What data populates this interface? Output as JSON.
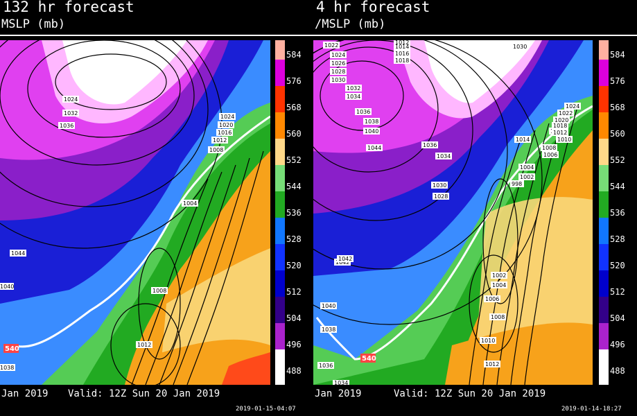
{
  "panels": [
    {
      "title": "132 hr forecast",
      "subtitle": "MSLP (mb)",
      "valid_init": "Jan 2019",
      "valid_label": "Valid: 12Z Sun 20 Jan 2019",
      "timestamp": "2019-01-15-04:07",
      "pressure_labels": [
        "1024",
        "1032",
        "1036",
        "1024",
        "1020",
        "1016",
        "1012",
        "1008",
        "1004",
        "1044",
        "1040",
        "1008",
        "1012",
        "1038"
      ],
      "thickness_label": "540"
    },
    {
      "title": "4 hr forecast",
      "subtitle": "/MSLP (mb)",
      "valid_init": "Jan 2019",
      "valid_label": "Valid: 12Z Sun 20 Jan 2019",
      "timestamp": "2019-01-14-18:27",
      "pressure_labels": [
        "1022",
        "1024",
        "1026",
        "1028",
        "1030",
        "1032",
        "1034",
        "1036",
        "1038",
        "1040",
        "1042",
        "1044",
        "1036",
        "1034",
        "1030",
        "1028",
        "1014",
        "1016",
        "1018",
        "1012",
        "1014",
        "1030",
        "1024",
        "1022",
        "1020",
        "1018",
        "1016",
        "1012",
        "1010",
        "1008",
        "1006",
        "1004",
        "1002",
        "1000",
        "998",
        "1042",
        "1040",
        "1038",
        "1036",
        "1034",
        "1002",
        "1004",
        "1006",
        "1008",
        "1010",
        "1012"
      ],
      "thickness_label": "540"
    }
  ],
  "colorbar": {
    "labels": [
      "584",
      "576",
      "568",
      "560",
      "552",
      "544",
      "536",
      "528",
      "520",
      "512",
      "504",
      "496",
      "488"
    ],
    "colors": [
      "#ffb0a0",
      "#dd00dd",
      "#ff3300",
      "#ff8800",
      "#ffaa22",
      "#ffd888",
      "#77dd77",
      "#55cc55",
      "#22aa22",
      "#1177ff",
      "#1133ff",
      "#0000cc",
      "#330088",
      "#7a00aa",
      "#aa22cc",
      "#ff44ff",
      "#ffaaff",
      "#ffffff"
    ]
  },
  "colors": {
    "warm_orange": "#f7a21b",
    "warm_yellow": "#f8d77a",
    "green_light": "#7fd07f",
    "green_dark": "#1e9e2e",
    "blue_light": "#3a8cff",
    "blue_dark": "#1a1fd6",
    "purple": "#8a1fc9",
    "magenta": "#e040f0",
    "pink": "#ffb7ff",
    "white": "#ffffff",
    "red": "#ff4a1a"
  }
}
